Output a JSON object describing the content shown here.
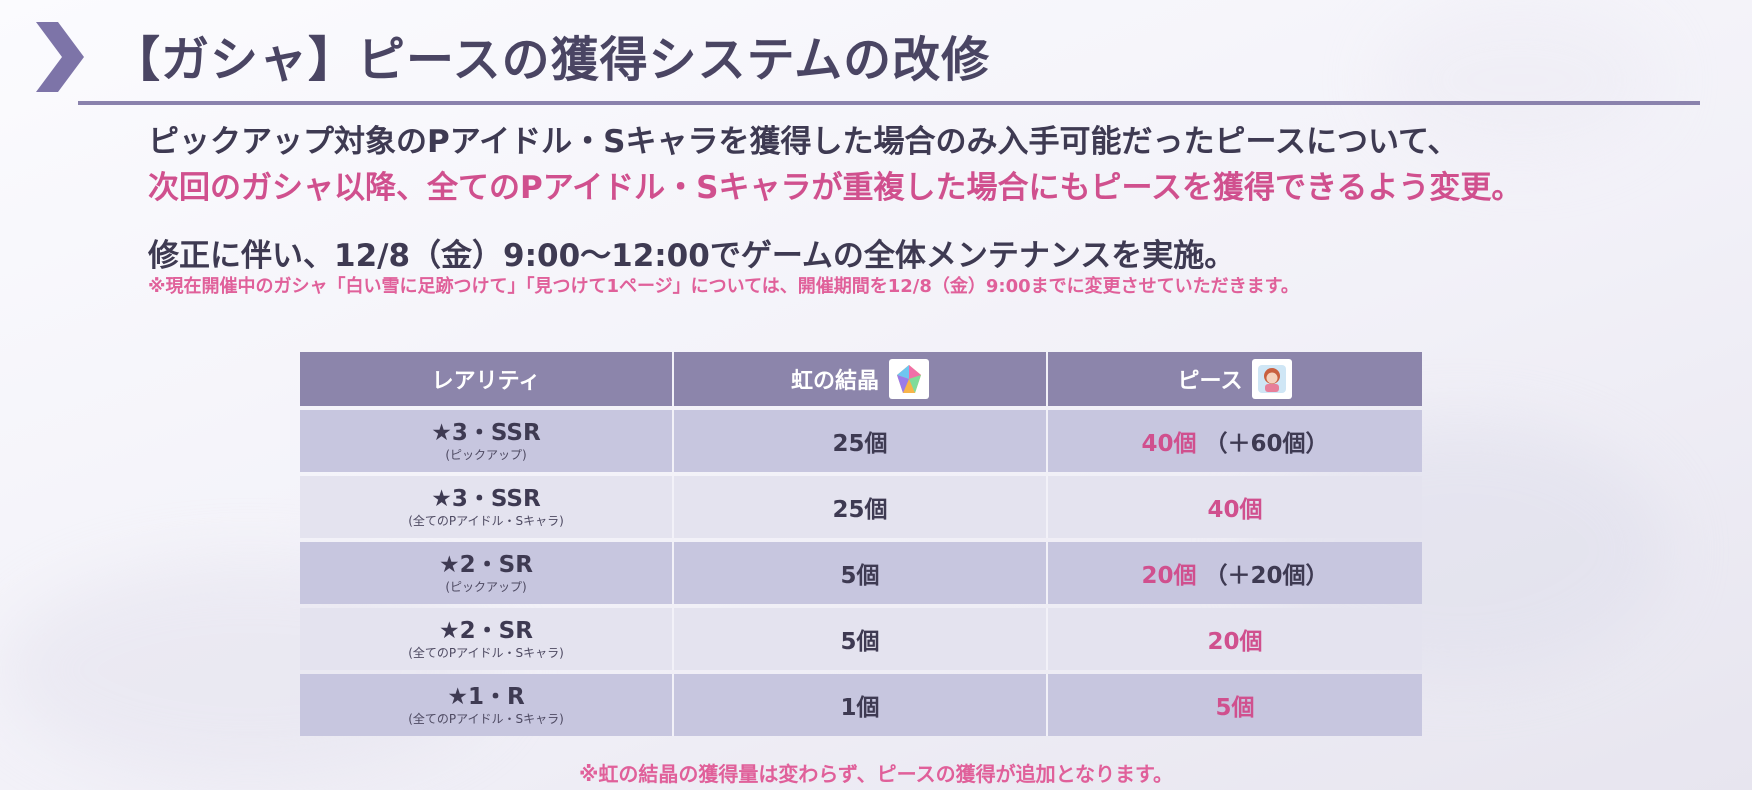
{
  "title": "【ガシャ】ピースの獲得システムの改修",
  "description": {
    "line1": "ピックアップ対象のPアイドル・Sキャラを獲得した場合のみ入手可能だったピースについて、",
    "line2": "次回のガシャ以降、全てのPアイドル・Sキャラが重複した場合にもピースを獲得できるよう変更。",
    "line3": "修正に伴い、12/8（金）9:00～12:00でゲームの全体メンテナンスを実施。",
    "line4": "※現在開催中のガシャ「白い雪に足跡つけて」「見つけて1ページ」については、開催期間を12/8（金）9:00までに変更させていただきます。"
  },
  "table": {
    "headers": {
      "rarity": "レアリティ",
      "crystal": "虹の結晶",
      "piece": "ピース"
    },
    "rows": [
      {
        "rarity": "★3・SSR",
        "sub": "(ピックアップ)",
        "crystal": "25個",
        "piece": "40個",
        "extra": "（＋60個）"
      },
      {
        "rarity": "★3・SSR",
        "sub": "(全てのPアイドル・Sキャラ)",
        "crystal": "25個",
        "piece": "40個",
        "extra": ""
      },
      {
        "rarity": "★2・SR",
        "sub": "(ピックアップ)",
        "crystal": "5個",
        "piece": "20個",
        "extra": "（＋20個）"
      },
      {
        "rarity": "★2・SR",
        "sub": "(全てのPアイドル・Sキャラ)",
        "crystal": "5個",
        "piece": "20個",
        "extra": ""
      },
      {
        "rarity": "★1・R",
        "sub": "(全てのPアイドル・Sキャラ)",
        "crystal": "1個",
        "piece": "5個",
        "extra": ""
      }
    ]
  },
  "note": "※虹の結晶の獲得量は変わらず、ピースの獲得が追加となります。",
  "colors": {
    "accent_pink": "#d0508e",
    "header_purple": "#8c85ab",
    "row_dark": "#c7c6df",
    "row_light": "#e4e3ef"
  },
  "icons": {
    "chevron": "chevron-right-icon",
    "crystal": "rainbow-crystal-icon",
    "piece": "piece-icon"
  }
}
